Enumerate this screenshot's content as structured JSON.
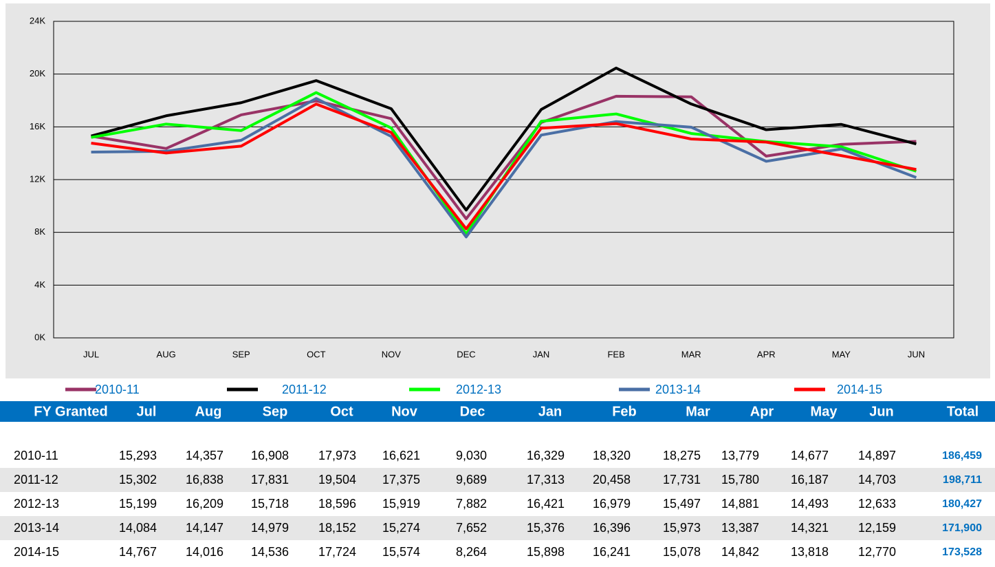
{
  "chart_data": {
    "type": "line",
    "categories": [
      "JUL",
      "AUG",
      "SEP",
      "OCT",
      "NOV",
      "DEC",
      "JAN",
      "FEB",
      "MAR",
      "APR",
      "MAY",
      "JUN"
    ],
    "series": [
      {
        "name": "2010-11",
        "color": "#993366",
        "values": [
          15293,
          14357,
          16908,
          17973,
          16621,
          9030,
          16329,
          18320,
          18275,
          13779,
          14677,
          14897
        ]
      },
      {
        "name": "2011-12",
        "color": "#000000",
        "values": [
          15302,
          16838,
          17831,
          19504,
          17375,
          9689,
          17313,
          20458,
          17731,
          15780,
          16187,
          14703
        ]
      },
      {
        "name": "2012-13",
        "color": "#00ff00",
        "values": [
          15199,
          16209,
          15718,
          18596,
          15919,
          7882,
          16421,
          16979,
          15497,
          14881,
          14493,
          12633
        ]
      },
      {
        "name": "2013-14",
        "color": "#4a6fa5",
        "values": [
          14084,
          14147,
          14979,
          18152,
          15274,
          7652,
          15376,
          16396,
          15973,
          13387,
          14321,
          12159
        ]
      },
      {
        "name": "2014-15",
        "color": "#ff0000",
        "values": [
          14767,
          14016,
          14536,
          17724,
          15574,
          8264,
          15898,
          16241,
          15078,
          14842,
          13818,
          12770
        ]
      }
    ],
    "ylim": [
      0,
      24000
    ],
    "yticks": [
      {
        "value": 0,
        "label": "0K"
      },
      {
        "value": 4000,
        "label": "4K"
      },
      {
        "value": 8000,
        "label": "8K"
      },
      {
        "value": 12000,
        "label": "12K"
      },
      {
        "value": 16000,
        "label": "16K"
      },
      {
        "value": 20000,
        "label": "20K"
      },
      {
        "value": 24000,
        "label": "24K"
      }
    ],
    "grid": true
  },
  "table": {
    "columns": [
      "FY Granted",
      "Jul",
      "Aug",
      "Sep",
      "Oct",
      "Nov",
      "Dec",
      "Jan",
      "Feb",
      "Mar",
      "Apr",
      "May",
      "Jun",
      "Total"
    ],
    "rows": [
      [
        "2010-11",
        "15,293",
        "14,357",
        "16,908",
        "17,973",
        "16,621",
        "9,030",
        "16,329",
        "18,320",
        "18,275",
        "13,779",
        "14,677",
        "14,897",
        "186,459"
      ],
      [
        "2011-12",
        "15,302",
        "16,838",
        "17,831",
        "19,504",
        "17,375",
        "9,689",
        "17,313",
        "20,458",
        "17,731",
        "15,780",
        "16,187",
        "14,703",
        "198,711"
      ],
      [
        "2012-13",
        "15,199",
        "16,209",
        "15,718",
        "18,596",
        "15,919",
        "7,882",
        "16,421",
        "16,979",
        "15,497",
        "14,881",
        "14,493",
        "12,633",
        "180,427"
      ],
      [
        "2013-14",
        "14,084",
        "14,147",
        "14,979",
        "18,152",
        "15,274",
        "7,652",
        "15,376",
        "16,396",
        "15,973",
        "13,387",
        "14,321",
        "12,159",
        "171,900"
      ],
      [
        "2014-15",
        "14,767",
        "14,016",
        "14,536",
        "17,724",
        "15,574",
        "8,264",
        "15,898",
        "16,241",
        "15,078",
        "14,842",
        "13,818",
        "12,770",
        "173,528"
      ]
    ]
  }
}
